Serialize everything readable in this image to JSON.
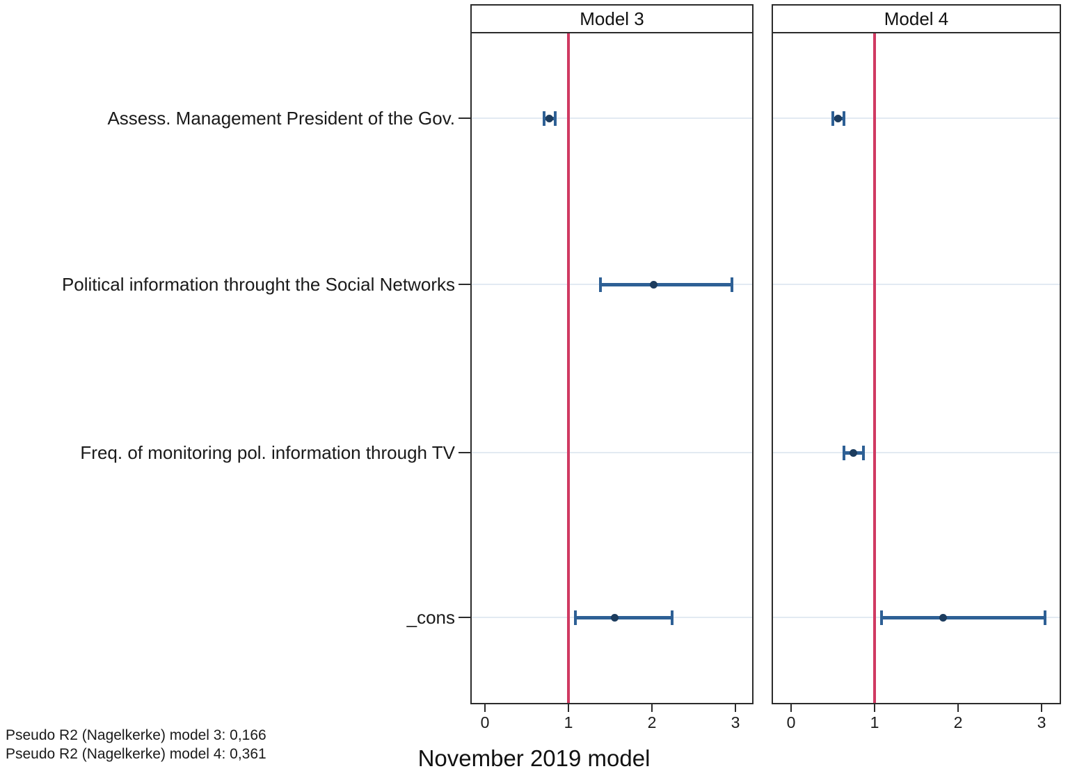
{
  "chart_data": {
    "type": "scatter",
    "chart_kind": "coefficient-forest-plot",
    "title": "",
    "xlabel": "November 2019 model",
    "ylabel": "",
    "panel_titles": [
      "Model 3",
      "Model 4"
    ],
    "categories": [
      "Assess. Management President of the Gov.",
      "Political information throught the Social Networks",
      "Freq. of monitoring pol. information through TV",
      "_cons"
    ],
    "x_ticks": [
      0,
      1,
      2,
      3
    ],
    "x_tick_labels": [
      "0",
      "1",
      "2",
      "3"
    ],
    "xlim": [
      -0.2,
      3.25
    ],
    "reference_line_x": 1,
    "legend_position": "none",
    "grid": "light horizontal gridline at each category row",
    "panels": [
      {
        "title": "Model 3",
        "points": [
          {
            "category": "Assess. Management President of the Gov.",
            "estimate": 0.77,
            "ci_low": 0.71,
            "ci_high": 0.84
          },
          {
            "category": "Political information throught the Social Networks",
            "estimate": 2.02,
            "ci_low": 1.38,
            "ci_high": 2.96
          },
          {
            "category": "_cons",
            "estimate": 1.55,
            "ci_low": 1.08,
            "ci_high": 2.24
          }
        ]
      },
      {
        "title": "Model 4",
        "points": [
          {
            "category": "Assess. Management President of the Gov.",
            "estimate": 0.56,
            "ci_low": 0.5,
            "ci_high": 0.63
          },
          {
            "category": "Freq. of monitoring pol. information through TV",
            "estimate": 0.74,
            "ci_low": 0.63,
            "ci_high": 0.87
          },
          {
            "category": "_cons",
            "estimate": 1.82,
            "ci_low": 1.08,
            "ci_high": 3.04
          }
        ]
      }
    ],
    "annotations": [
      "Pseudo R2 (Nagelkerke) model 3: 0,166",
      "Pseudo R2 (Nagelkerke) model 4: 0,361"
    ],
    "colors": {
      "ci": "#2e6095",
      "marker": "#1c3c5e",
      "reference_line": "#d03a62",
      "gridline": "#e2eaf2",
      "panel_border": "#2b2b2b",
      "text": "#1a1a1a",
      "background": "#ffffff"
    }
  }
}
